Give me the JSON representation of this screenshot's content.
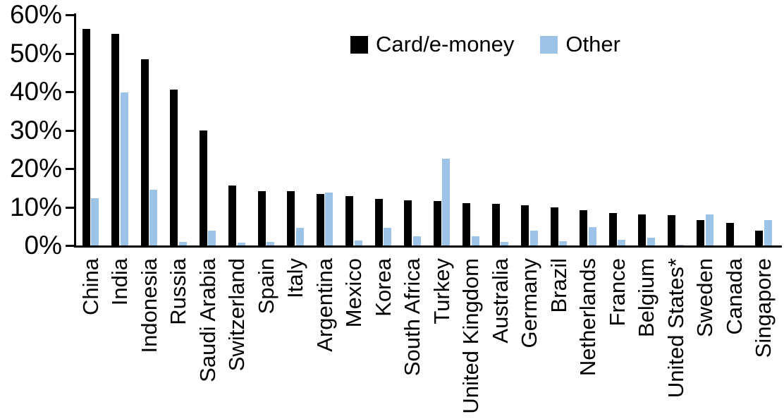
{
  "chart_data": {
    "type": "bar",
    "title": "",
    "categories": [
      "China",
      "India",
      "Indonesia",
      "Russia",
      "Saudi Arabia",
      "Switzerland",
      "Spain",
      "Italy",
      "Argentina",
      "Mexico",
      "Korea",
      "South Africa",
      "Turkey",
      "United Kingdom",
      "Australia",
      "Germany",
      "Brazil",
      "Netherlands",
      "France",
      "Belgium",
      "United States*",
      "Sweden",
      "Canada",
      "Singapore"
    ],
    "series": [
      {
        "name": "Card/e-money",
        "color": "#000000",
        "values": [
          56.3,
          55.1,
          48.4,
          40.6,
          29.9,
          15.6,
          14.2,
          14.1,
          13.4,
          12.9,
          12.2,
          11.7,
          11.6,
          11.1,
          10.8,
          10.5,
          9.9,
          9.1,
          8.5,
          8.0,
          7.8,
          6.6,
          5.9,
          3.9
        ]
      },
      {
        "name": "Other",
        "color": "#9DC3E6",
        "values": [
          12.3,
          39.8,
          14.5,
          0.9,
          3.8,
          0.8,
          0.9,
          4.6,
          13.7,
          1.3,
          4.6,
          2.4,
          22.5,
          2.4,
          0.9,
          3.9,
          1.1,
          4.7,
          1.4,
          2.0,
          0.2,
          8.1,
          0,
          6.6
        ]
      }
    ],
    "xlabel": "",
    "ylabel": "",
    "ylim": [
      0,
      60
    ],
    "yticks": [
      "0%",
      "10%",
      "20%",
      "30%",
      "40%",
      "50%",
      "60%"
    ],
    "ytick_values": [
      0,
      10,
      20,
      30,
      40,
      50,
      60
    ],
    "grid": false,
    "legend_position": "top-center",
    "axis_color": "#000000",
    "background_color": "#FFFFFF"
  }
}
